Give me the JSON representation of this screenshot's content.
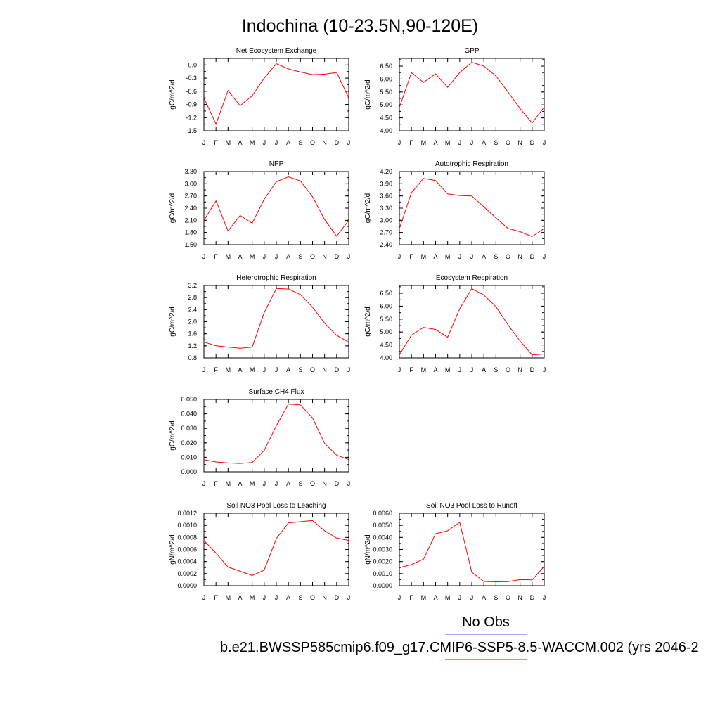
{
  "figure_title": "Indochina (10-23.5N,90-120E)",
  "legend": {
    "obs_label": "No Obs",
    "obs_color": "#4f4fff",
    "model_label": "b.e21.BWSSP585cmip6.f09_g17.CMIP6-SSP5-8.5-WACCM.002 (yrs 2046-2",
    "model_color": "#ff0000"
  },
  "chart_data": [
    {
      "type": "line",
      "title": "Net Ecosystem Exchange",
      "ylabel": "gC/m^2/d",
      "categories": [
        "J",
        "F",
        "M",
        "A",
        "M",
        "J",
        "J",
        "A",
        "S",
        "O",
        "N",
        "D",
        "J"
      ],
      "yticks": [
        "0.0",
        "-0.3",
        "-0.6",
        "-0.9",
        "-1.2",
        "-1.5"
      ],
      "ylim": [
        -1.5,
        0.15
      ],
      "grid": false,
      "series": [
        {
          "color": "#ff0000",
          "values": [
            -0.75,
            -1.35,
            -0.58,
            -0.93,
            -0.7,
            -0.3,
            0.03,
            -0.09,
            -0.16,
            -0.22,
            -0.21,
            -0.17,
            -0.75
          ]
        }
      ]
    },
    {
      "type": "line",
      "title": "GPP",
      "ylabel": "gC/m^2/d",
      "categories": [
        "J",
        "F",
        "M",
        "A",
        "M",
        "J",
        "J",
        "A",
        "S",
        "O",
        "N",
        "D",
        "J"
      ],
      "yticks": [
        "6.50",
        "6.00",
        "5.50",
        "5.00",
        "4.50",
        "4.00"
      ],
      "ylim": [
        4.0,
        6.8
      ],
      "grid": false,
      "series": [
        {
          "color": "#ff0000",
          "values": [
            4.9,
            6.25,
            5.87,
            6.2,
            5.68,
            6.25,
            6.65,
            6.5,
            6.12,
            5.5,
            4.86,
            4.3,
            4.92
          ]
        }
      ]
    },
    {
      "type": "line",
      "title": "NPP",
      "ylabel": "gC/m^2/d",
      "categories": [
        "J",
        "F",
        "M",
        "A",
        "M",
        "J",
        "J",
        "A",
        "S",
        "O",
        "N",
        "D",
        "J"
      ],
      "yticks": [
        "3.30",
        "3.00",
        "2.70",
        "2.40",
        "2.10",
        "1.80",
        "1.50"
      ],
      "ylim": [
        1.5,
        3.3
      ],
      "grid": false,
      "series": [
        {
          "color": "#ff0000",
          "values": [
            2.1,
            2.58,
            1.84,
            2.22,
            2.03,
            2.62,
            3.05,
            3.17,
            3.07,
            2.68,
            2.12,
            1.71,
            2.1
          ]
        }
      ]
    },
    {
      "type": "line",
      "title": "Autotrophic Respiration",
      "ylabel": "gC/m^2/d",
      "categories": [
        "J",
        "F",
        "M",
        "A",
        "M",
        "J",
        "J",
        "A",
        "S",
        "O",
        "N",
        "D",
        "J"
      ],
      "yticks": [
        "4.20",
        "3.90",
        "3.60",
        "3.30",
        "3.00",
        "2.70",
        "2.40"
      ],
      "ylim": [
        2.4,
        4.2
      ],
      "grid": false,
      "series": [
        {
          "color": "#ff0000",
          "values": [
            2.8,
            3.68,
            4.03,
            3.98,
            3.65,
            3.61,
            3.6,
            3.33,
            3.06,
            2.8,
            2.72,
            2.6,
            2.8
          ]
        }
      ]
    },
    {
      "type": "line",
      "title": "Heterotrophic Respiration",
      "ylabel": "gC/m^2/d",
      "categories": [
        "J",
        "F",
        "M",
        "A",
        "M",
        "J",
        "J",
        "A",
        "S",
        "O",
        "N",
        "D",
        "J"
      ],
      "yticks": [
        "3.2",
        "2.8",
        "2.4",
        "2.0",
        "1.6",
        "1.2",
        "0.8"
      ],
      "ylim": [
        0.8,
        3.2
      ],
      "grid": false,
      "series": [
        {
          "color": "#ff0000",
          "values": [
            1.33,
            1.2,
            1.16,
            1.12,
            1.16,
            2.3,
            3.1,
            3.08,
            2.9,
            2.48,
            1.95,
            1.55,
            1.32
          ]
        }
      ]
    },
    {
      "type": "line",
      "title": "Ecosystem Respiration",
      "ylabel": "gC/m^2/d",
      "categories": [
        "J",
        "F",
        "M",
        "A",
        "M",
        "J",
        "J",
        "A",
        "S",
        "O",
        "N",
        "D",
        "J"
      ],
      "yticks": [
        "6.50",
        "6.00",
        "5.50",
        "5.00",
        "4.50",
        "4.00"
      ],
      "ylim": [
        4.0,
        6.8
      ],
      "grid": false,
      "series": [
        {
          "color": "#ff0000",
          "values": [
            4.12,
            4.88,
            5.18,
            5.1,
            4.8,
            5.9,
            6.68,
            6.43,
            5.98,
            5.28,
            4.65,
            4.12,
            4.15
          ]
        }
      ]
    },
    {
      "type": "line",
      "title": "Surface CH4 Flux",
      "ylabel": "gC/m^2/d",
      "categories": [
        "J",
        "F",
        "M",
        "A",
        "M",
        "J",
        "J",
        "A",
        "S",
        "O",
        "N",
        "D",
        "J"
      ],
      "yticks": [
        "0.050",
        "0.040",
        "0.030",
        "0.020",
        "0.010",
        "0.000"
      ],
      "ylim": [
        0.0,
        0.05
      ],
      "grid": false,
      "series": [
        {
          "color": "#ff0000",
          "values": [
            0.0083,
            0.0068,
            0.0061,
            0.0058,
            0.0064,
            0.0148,
            0.0318,
            0.0467,
            0.0462,
            0.0372,
            0.0196,
            0.0115,
            0.0084
          ]
        }
      ]
    },
    {
      "type": "line",
      "title": "Soil NO3 Pool Loss to Leaching",
      "ylabel": "gN/m^2/d",
      "categories": [
        "J",
        "F",
        "M",
        "A",
        "M",
        "J",
        "J",
        "A",
        "S",
        "O",
        "N",
        "D",
        "J"
      ],
      "yticks": [
        "0.0012",
        "0.0010",
        "0.0008",
        "0.0006",
        "0.0004",
        "0.0002",
        "0.0000"
      ],
      "ylim": [
        0.0,
        0.0012
      ],
      "grid": false,
      "series": [
        {
          "color": "#ff0000",
          "values": [
            0.00075,
            0.00054,
            0.00031,
            0.00024,
            0.00017,
            0.00026,
            0.00078,
            0.00104,
            0.00106,
            0.00108,
            0.00091,
            0.00079,
            0.00075
          ]
        }
      ]
    },
    {
      "type": "line",
      "title": "Soil NO3 Pool Loss to Runoff",
      "ylabel": "gN/m^2/d",
      "categories": [
        "J",
        "F",
        "M",
        "A",
        "M",
        "J",
        "J",
        "A",
        "S",
        "O",
        "N",
        "D",
        "J"
      ],
      "yticks": [
        "0.0060",
        "0.0050",
        "0.0040",
        "0.0030",
        "0.0020",
        "0.0010",
        "0.0000"
      ],
      "ylim": [
        0.0,
        0.006
      ],
      "grid": false,
      "series": [
        {
          "color": "#ff0000",
          "values": [
            0.0015,
            0.00175,
            0.0022,
            0.0043,
            0.00455,
            0.00525,
            0.00112,
            0.00035,
            0.00032,
            0.00033,
            0.0005,
            0.00048,
            0.0016
          ]
        }
      ]
    }
  ]
}
